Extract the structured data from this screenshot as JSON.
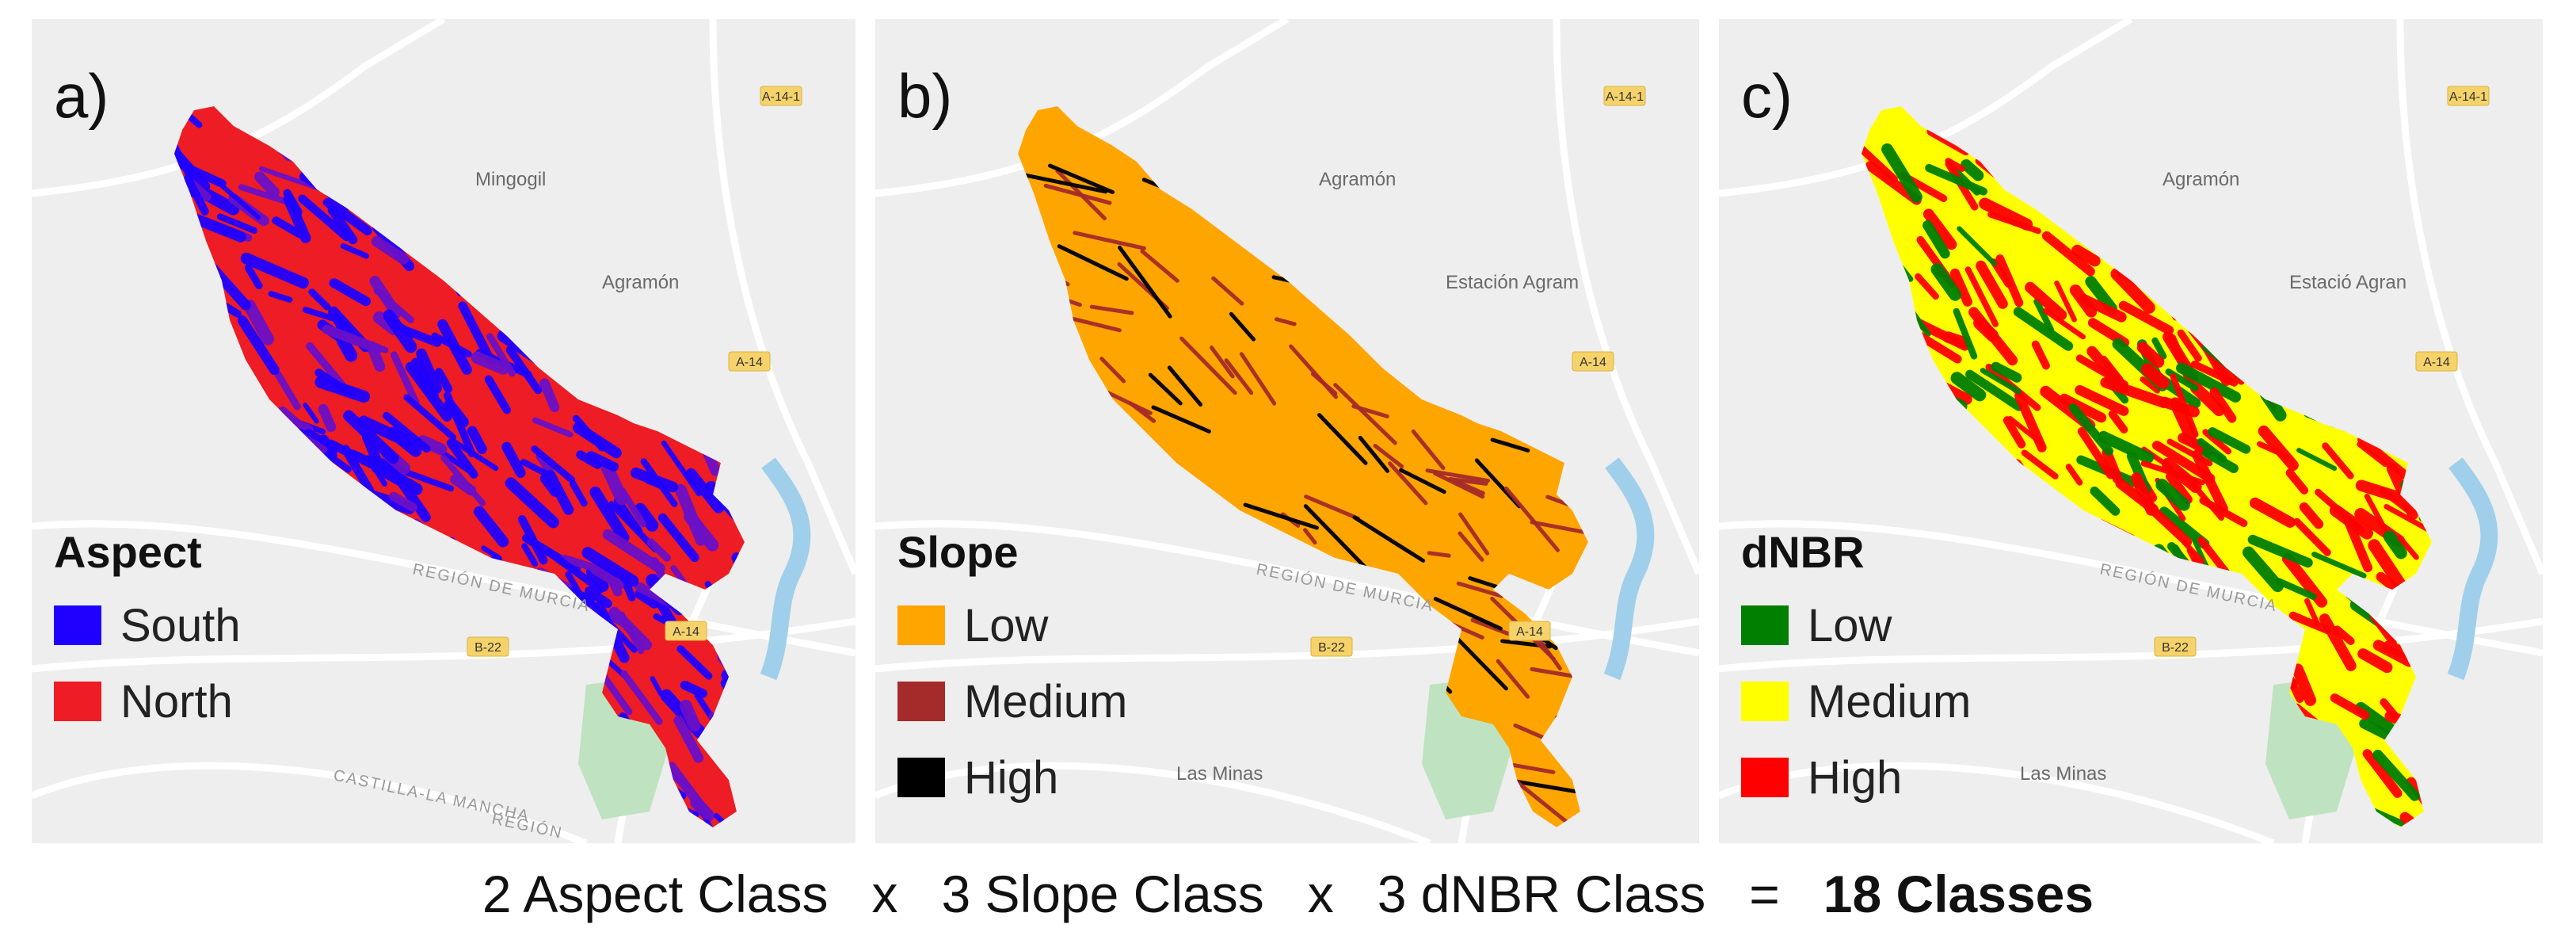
{
  "panels": [
    {
      "letter": "a)",
      "legend_title": "Aspect",
      "legend": [
        {
          "label": "South",
          "color": "#1f00ff"
        },
        {
          "label": "North",
          "color": "#ee1c24"
        }
      ],
      "base_color": "#ee1c24",
      "texture": [
        "#1f00ff",
        "#6a10c8"
      ],
      "places": [
        "Mingogil",
        "Agramón",
        "REGIÓN DE MURCIA",
        "CASTILLA-LA MANCHA",
        "REGIÓN"
      ],
      "roads": [
        "A-14-1",
        "A-14",
        "B-22",
        "A-14"
      ]
    },
    {
      "letter": "b)",
      "legend_title": "Slope",
      "legend": [
        {
          "label": "Low",
          "color": "#ffa500"
        },
        {
          "label": "Medium",
          "color": "#a52a2a"
        },
        {
          "label": "High",
          "color": "#000000"
        }
      ],
      "base_color": "#ffa500",
      "texture": [
        "#a52a2a",
        "#000000"
      ],
      "places": [
        "Agramón",
        "Estación Agram",
        "REGIÓN DE MURCIA",
        "Las Minas"
      ],
      "roads": [
        "A-14-1",
        "A-14",
        "B-22",
        "A-14"
      ]
    },
    {
      "letter": "c)",
      "legend_title": "dNBR",
      "legend": [
        {
          "label": "Low",
          "color": "#007f00"
        },
        {
          "label": "Medium",
          "color": "#ffff00"
        },
        {
          "label": "High",
          "color": "#ff0000"
        }
      ],
      "base_color": "#ffff00",
      "texture": [
        "#ff0000",
        "#007f00"
      ],
      "places": [
        "Agramón",
        "Estació Agran",
        "REGIÓN DE MURCIA",
        "Las Minas"
      ],
      "roads": [
        "A-14-1",
        "A-14",
        "B-22"
      ]
    }
  ],
  "caption": {
    "aspect": "2 Aspect Class",
    "op1": "x",
    "slope": "3 Slope Class",
    "op2": "x",
    "dnbr": "3 dNBR Class",
    "eq": "=",
    "result": "18 Classes"
  }
}
